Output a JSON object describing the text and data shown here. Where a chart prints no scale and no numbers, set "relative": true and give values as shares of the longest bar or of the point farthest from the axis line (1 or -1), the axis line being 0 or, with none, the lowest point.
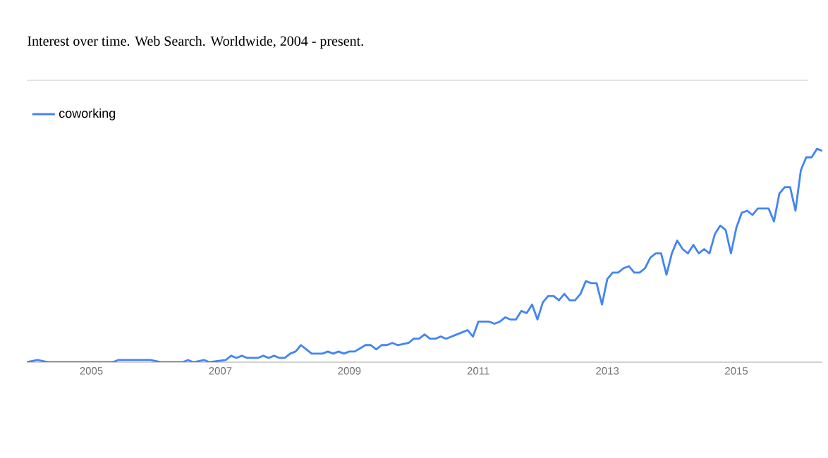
{
  "chart_data": {
    "type": "line",
    "title": "Interest over time. Web Search. Worldwide, 2004 - present.",
    "relative": true,
    "legend": "top left",
    "marker": "none",
    "line_style": "solid",
    "xlim": [
      "2004-01",
      "2016-05"
    ],
    "xticks": [
      "2005",
      "2007",
      "2009",
      "2011",
      "2013",
      "2015"
    ],
    "x": [
      "2004-01",
      "2004-03",
      "2004-05",
      "2005-05",
      "2005-06",
      "2005-12",
      "2006-02",
      "2006-06",
      "2006-07",
      "2006-08",
      "2006-10",
      "2006-11",
      "2007-02",
      "2007-03",
      "2007-04",
      "2007-05",
      "2007-06",
      "2007-08",
      "2007-09",
      "2007-10",
      "2007-11",
      "2007-12",
      "2008-01",
      "2008-02",
      "2008-03",
      "2008-04",
      "2008-05",
      "2008-06",
      "2008-08",
      "2008-09",
      "2008-10",
      "2008-11",
      "2008-12",
      "2009-01",
      "2009-02",
      "2009-04",
      "2009-05",
      "2009-06",
      "2009-07",
      "2009-08",
      "2009-09",
      "2009-10",
      "2009-12",
      "2010-01",
      "2010-02",
      "2010-03",
      "2010-04",
      "2010-05",
      "2010-06",
      "2010-07",
      "2010-09",
      "2010-10",
      "2010-11",
      "2010-12",
      "2011-01",
      "2011-03",
      "2011-04",
      "2011-05",
      "2011-06",
      "2011-07",
      "2011-08",
      "2011-09",
      "2011-10",
      "2011-11",
      "2011-12",
      "2012-01",
      "2012-02",
      "2012-03",
      "2012-04",
      "2012-05",
      "2012-06",
      "2012-07",
      "2012-08",
      "2012-09",
      "2012-10",
      "2012-11",
      "2012-12",
      "2013-01",
      "2013-02",
      "2013-03",
      "2013-04",
      "2013-05",
      "2013-06",
      "2013-07",
      "2013-08",
      "2013-09",
      "2013-10",
      "2013-11",
      "2013-12",
      "2014-01",
      "2014-02",
      "2014-03",
      "2014-04",
      "2014-05",
      "2014-06",
      "2014-07",
      "2014-08",
      "2014-09",
      "2014-10",
      "2014-11",
      "2014-12",
      "2015-01",
      "2015-02",
      "2015-03",
      "2015-04",
      "2015-05",
      "2015-06",
      "2015-07",
      "2015-08",
      "2015-09",
      "2015-10",
      "2015-11",
      "2015-12",
      "2016-01",
      "2016-02",
      "2016-03",
      "2016-04",
      "2016-05"
    ],
    "series": [
      {
        "name": "coworking",
        "color": "#4285f4",
        "values": [
          0,
          0.01,
          0,
          0,
          0.01,
          0.01,
          0,
          0,
          0.01,
          0,
          0.01,
          0,
          0.01,
          0.03,
          0.02,
          0.03,
          0.02,
          0.02,
          0.03,
          0.02,
          0.03,
          0.02,
          0.02,
          0.04,
          0.05,
          0.08,
          0.06,
          0.04,
          0.04,
          0.05,
          0.04,
          0.05,
          0.04,
          0.05,
          0.05,
          0.08,
          0.08,
          0.06,
          0.08,
          0.08,
          0.09,
          0.08,
          0.09,
          0.11,
          0.11,
          0.13,
          0.11,
          0.11,
          0.12,
          0.11,
          0.13,
          0.14,
          0.15,
          0.12,
          0.19,
          0.19,
          0.18,
          0.19,
          0.21,
          0.2,
          0.2,
          0.24,
          0.23,
          0.27,
          0.2,
          0.28,
          0.31,
          0.31,
          0.29,
          0.32,
          0.29,
          0.29,
          0.32,
          0.38,
          0.37,
          0.37,
          0.27,
          0.39,
          0.42,
          0.42,
          0.44,
          0.45,
          0.42,
          0.42,
          0.44,
          0.49,
          0.51,
          0.51,
          0.41,
          0.51,
          0.57,
          0.53,
          0.51,
          0.55,
          0.51,
          0.53,
          0.51,
          0.6,
          0.64,
          0.62,
          0.51,
          0.63,
          0.7,
          0.71,
          0.69,
          0.72,
          0.72,
          0.72,
          0.66,
          0.79,
          0.82,
          0.82,
          0.71,
          0.9,
          0.96,
          0.96,
          1.0,
          0.99
        ]
      }
    ]
  }
}
